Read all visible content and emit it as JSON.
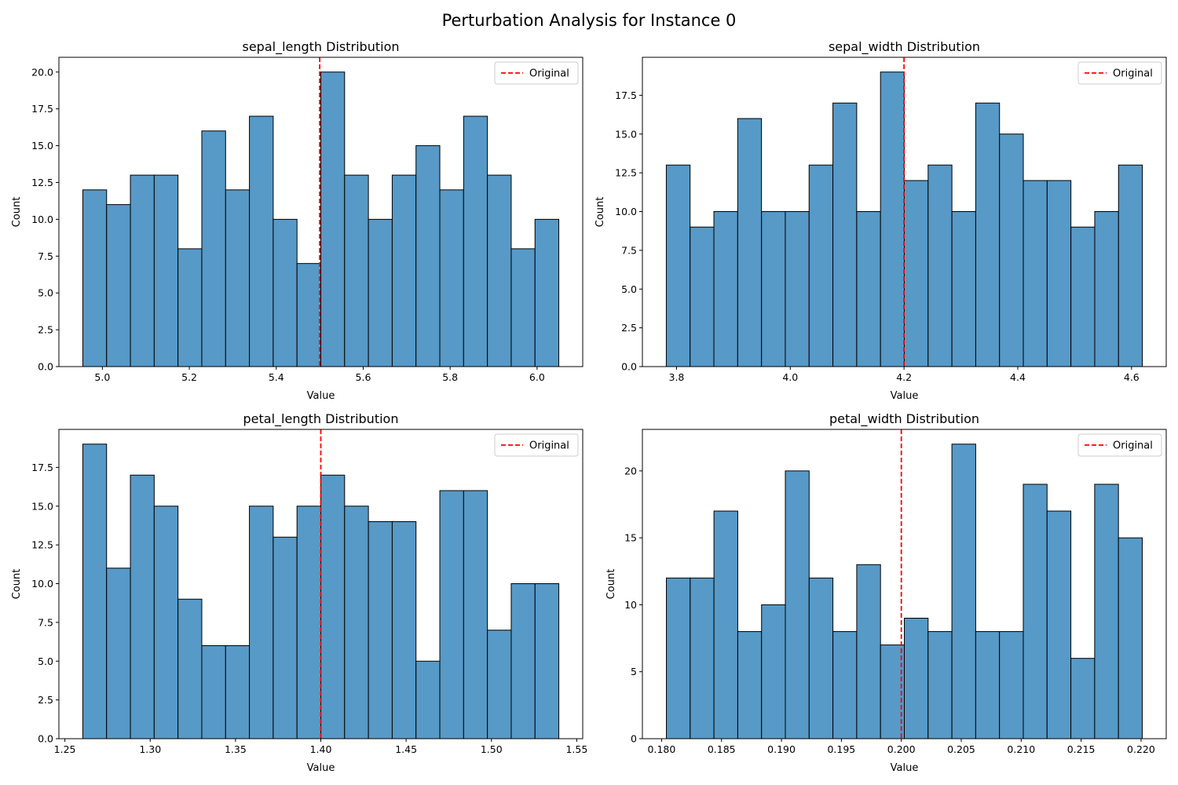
{
  "suptitle": "Perturbation Analysis for Instance 0",
  "chart_data": [
    {
      "type": "bar",
      "subtype": "histogram",
      "title": "sepal_length Distribution",
      "xlabel": "Value",
      "ylabel": "Count",
      "bin_range": [
        4.955,
        6.05
      ],
      "values": [
        12,
        11,
        13,
        13,
        8,
        16,
        12,
        17,
        10,
        7,
        20,
        13,
        10,
        13,
        15,
        12,
        17,
        13,
        8,
        10
      ],
      "xlim": [
        4.9,
        6.105
      ],
      "ylim": [
        0,
        21
      ],
      "xticks": [
        5.0,
        5.2,
        5.4,
        5.6,
        5.8,
        6.0
      ],
      "xtick_labels": [
        "5.0",
        "5.2",
        "5.4",
        "5.6",
        "5.8",
        "6.0"
      ],
      "yticks": [
        0,
        2.5,
        5,
        7.5,
        10,
        12.5,
        15,
        17.5,
        20
      ],
      "ytick_labels": [
        "0.0",
        "2.5",
        "5.0",
        "7.5",
        "10.0",
        "12.5",
        "15.0",
        "17.5",
        "20.0"
      ],
      "original_value": 5.5,
      "legend": {
        "label": "Original",
        "position": "upper right"
      }
    },
    {
      "type": "bar",
      "subtype": "histogram",
      "title": "sepal_width Distribution",
      "xlabel": "Value",
      "ylabel": "Count",
      "bin_range": [
        3.782,
        4.619
      ],
      "values": [
        13,
        9,
        10,
        16,
        10,
        10,
        13,
        17,
        10,
        19,
        12,
        13,
        10,
        17,
        15,
        12,
        12,
        9,
        10,
        13
      ],
      "xlim": [
        3.74,
        4.661
      ],
      "ylim": [
        0,
        19.95
      ],
      "xticks": [
        3.8,
        4.0,
        4.2,
        4.4,
        4.6
      ],
      "xtick_labels": [
        "3.8",
        "4.0",
        "4.2",
        "4.4",
        "4.6"
      ],
      "yticks": [
        0,
        2.5,
        5,
        7.5,
        10,
        12.5,
        15,
        17.5
      ],
      "ytick_labels": [
        "0.0",
        "2.5",
        "5.0",
        "7.5",
        "10.0",
        "12.5",
        "15.0",
        "17.5"
      ],
      "original_value": 4.2,
      "legend": {
        "label": "Original",
        "position": "upper right"
      }
    },
    {
      "type": "bar",
      "subtype": "histogram",
      "title": "petal_length Distribution",
      "xlabel": "Value",
      "ylabel": "Count",
      "bin_range": [
        1.2605,
        1.5395
      ],
      "values": [
        19,
        11,
        17,
        15,
        9,
        6,
        6,
        15,
        13,
        15,
        17,
        15,
        14,
        14,
        5,
        16,
        16,
        7,
        10,
        10
      ],
      "xlim": [
        1.2465,
        1.5535
      ],
      "ylim": [
        0,
        19.95
      ],
      "xticks": [
        1.25,
        1.3,
        1.35,
        1.4,
        1.45,
        1.5,
        1.55
      ],
      "xtick_labels": [
        "1.25",
        "1.30",
        "1.35",
        "1.40",
        "1.45",
        "1.50",
        "1.55"
      ],
      "yticks": [
        0,
        2.5,
        5,
        7.5,
        10,
        12.5,
        15,
        17.5
      ],
      "ytick_labels": [
        "0.0",
        "2.5",
        "5.0",
        "7.5",
        "10.0",
        "12.5",
        "15.0",
        "17.5"
      ],
      "original_value": 1.4,
      "legend": {
        "label": "Original",
        "position": "upper right"
      }
    },
    {
      "type": "bar",
      "subtype": "histogram",
      "title": "petal_width Distribution",
      "xlabel": "Value",
      "ylabel": "Count",
      "bin_range": [
        0.1804,
        0.2201
      ],
      "values": [
        12,
        12,
        17,
        8,
        10,
        20,
        12,
        8,
        13,
        7,
        9,
        8,
        22,
        8,
        8,
        19,
        17,
        6,
        19,
        15
      ],
      "xlim": [
        0.1784,
        0.2221
      ],
      "ylim": [
        0,
        23.1
      ],
      "xticks": [
        0.18,
        0.185,
        0.19,
        0.195,
        0.2,
        0.205,
        0.21,
        0.215,
        0.22
      ],
      "xtick_labels": [
        "0.180",
        "0.185",
        "0.190",
        "0.195",
        "0.200",
        "0.205",
        "0.210",
        "0.215",
        "0.220"
      ],
      "yticks": [
        0,
        5,
        10,
        15,
        20
      ],
      "ytick_labels": [
        "0",
        "5",
        "10",
        "15",
        "20"
      ],
      "original_value": 0.2,
      "legend": {
        "label": "Original",
        "position": "upper right"
      }
    }
  ],
  "colors": {
    "bar_fill": "#5799c7",
    "bar_edge": "#000000",
    "original_line": "#ff0000"
  }
}
